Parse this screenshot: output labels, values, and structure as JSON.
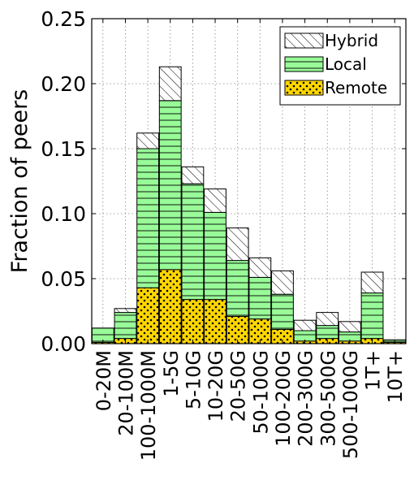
{
  "chart_data": {
    "type": "bar",
    "stacked": true,
    "categories": [
      "0-20M",
      "20-100M",
      "100-1000M",
      "1-5G",
      "5-10G",
      "10-20G",
      "20-50G",
      "50-100G",
      "100-200G",
      "200-300G",
      "300-500G",
      "500-1000G",
      "1T+",
      "10T+"
    ],
    "series": [
      {
        "name": "Remote",
        "color": "#ffd700",
        "pattern": "dots",
        "values": [
          0.001,
          0.004,
          0.043,
          0.057,
          0.034,
          0.034,
          0.021,
          0.019,
          0.011,
          0.002,
          0.004,
          0.002,
          0.004,
          0.001
        ]
      },
      {
        "name": "Local",
        "color": "#98fb98",
        "pattern": "horizontal-lines",
        "values": [
          0.011,
          0.02,
          0.107,
          0.13,
          0.089,
          0.067,
          0.043,
          0.032,
          0.027,
          0.008,
          0.01,
          0.007,
          0.035,
          0.002
        ]
      },
      {
        "name": "Hybrid",
        "color": "#ffffff",
        "pattern": "diagonal-hatch",
        "values": [
          0.0,
          0.003,
          0.012,
          0.026,
          0.013,
          0.018,
          0.025,
          0.015,
          0.018,
          0.008,
          0.01,
          0.008,
          0.016,
          0.0
        ]
      }
    ],
    "ylabel": "Fraction of peers",
    "xlabel": "",
    "ylim": [
      0,
      0.25
    ],
    "yticks": [
      "0.00",
      "0.05",
      "0.10",
      "0.15",
      "0.20",
      "0.25"
    ],
    "grid": true,
    "legend_position": "top-right",
    "legend_order": [
      "Hybrid",
      "Local",
      "Remote"
    ]
  }
}
